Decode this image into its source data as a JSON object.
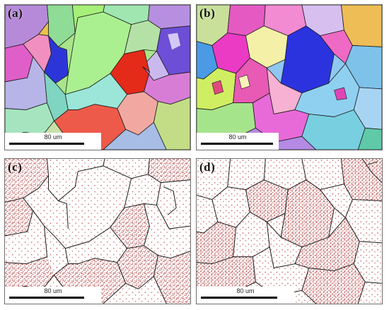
{
  "panels": [
    {
      "id": "a",
      "label": "(a)",
      "type": "orientation-map"
    },
    {
      "id": "b",
      "label": "(b)",
      "type": "orientation-map"
    },
    {
      "id": "c",
      "label": "(c)",
      "type": "kam-map"
    },
    {
      "id": "d",
      "label": "(d)",
      "type": "kam-map"
    }
  ],
  "scale_bar": {
    "label": "80 um"
  },
  "colors": {
    "grain_boundary": "#1a1a1a",
    "kam_points": "#b84a4a",
    "background": "#ffffff"
  }
}
